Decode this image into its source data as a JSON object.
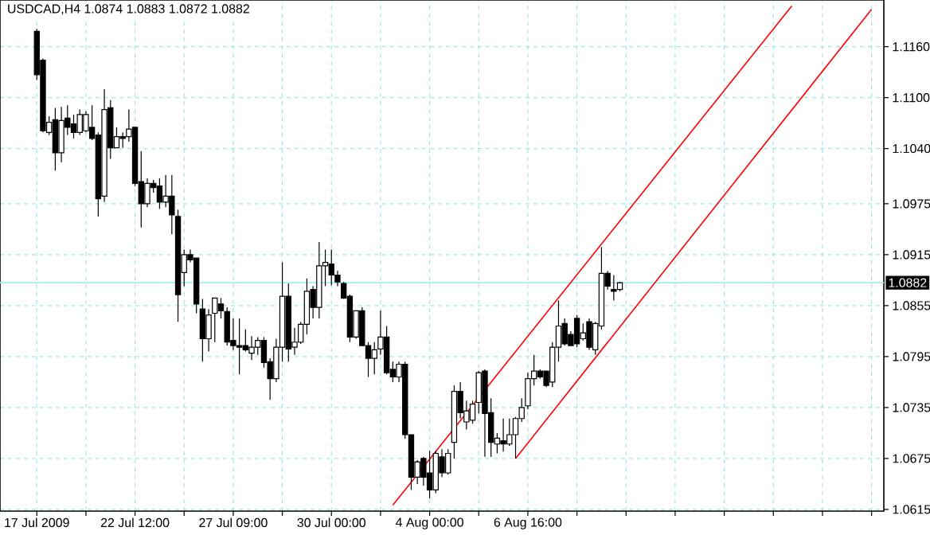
{
  "chart_data": {
    "type": "candlestick",
    "title": "USDCAD,H4 1.0874 1.0883 1.0872 1.0882",
    "categories": [
      "17 Jul 2009",
      null,
      null,
      null,
      null,
      null,
      null,
      null,
      null,
      null,
      null,
      null,
      null,
      null,
      null,
      null,
      "22 Jul 12:00",
      null,
      null,
      null,
      null,
      null,
      null,
      null,
      null,
      null,
      null,
      null,
      null,
      null,
      null,
      null,
      "27 Jul 09:00",
      null,
      null,
      null,
      null,
      null,
      null,
      null,
      null,
      null,
      null,
      null,
      null,
      null,
      null,
      null,
      "30 Jul 00:00",
      null,
      null,
      null,
      null,
      null,
      null,
      null,
      null,
      null,
      null,
      null,
      null,
      null,
      null,
      null,
      "4 Aug 00:00",
      null,
      null,
      null,
      null,
      null,
      null,
      null,
      null,
      null,
      null,
      null,
      null,
      null,
      null,
      null,
      "6 Aug 16:00",
      null,
      null,
      null,
      null,
      null,
      null,
      null,
      null,
      null,
      null,
      null,
      null,
      null,
      null,
      null,
      null,
      null,
      null,
      null,
      null,
      null,
      null,
      null,
      null,
      null,
      null,
      null,
      null,
      null,
      null,
      null,
      null,
      null,
      null,
      null,
      null,
      null,
      null,
      null,
      null,
      null,
      null,
      null,
      null,
      null,
      null,
      null,
      null,
      null,
      null,
      null,
      null,
      null,
      null,
      null,
      null,
      null,
      null
    ],
    "ohlc": [
      [
        1.1178,
        1.1181,
        1.1121,
        1.1127
      ],
      [
        1.1144,
        1.1146,
        1.1059,
        1.1061
      ],
      [
        1.1059,
        1.1078,
        1.1056,
        1.1071
      ],
      [
        1.1074,
        1.1088,
        1.1014,
        1.1035
      ],
      [
        1.1035,
        1.1089,
        1.1024,
        1.1073
      ],
      [
        1.1076,
        1.1091,
        1.1056,
        1.1065
      ],
      [
        1.1069,
        1.108,
        1.1052,
        1.1059
      ],
      [
        1.1059,
        1.1086,
        1.1056,
        1.108
      ],
      [
        1.1061,
        1.1084,
        1.1059,
        1.108
      ],
      [
        1.1065,
        1.1091,
        1.105,
        1.1052
      ],
      [
        1.1056,
        1.1059,
        1.096,
        1.0981
      ],
      [
        1.0984,
        1.111,
        1.0977,
        1.1086
      ],
      [
        1.1088,
        1.1097,
        1.1028,
        1.1041
      ],
      [
        1.1041,
        1.1065,
        1.1041,
        1.1054
      ],
      [
        1.1054,
        1.1059,
        1.1041,
        1.1052
      ],
      [
        1.1054,
        1.1086,
        1.1048,
        1.1063
      ],
      [
        1.1065,
        1.1065,
        1.0996,
        1.0999
      ],
      [
        1.1001,
        1.1037,
        1.0947,
        1.0975
      ],
      [
        1.0975,
        1.1005,
        1.0971,
        1.0999
      ],
      [
        1.0999,
        1.1003,
        1.0988,
        1.0994
      ],
      [
        1.0996,
        1.1005,
        1.0969,
        1.0977
      ],
      [
        1.0977,
        1.1009,
        1.0971,
        1.0984
      ],
      [
        1.0984,
        1.1009,
        1.0939,
        1.0962
      ],
      [
        1.096,
        1.0968,
        1.0836,
        1.0868
      ],
      [
        1.0894,
        1.0921,
        1.0878,
        1.0915
      ],
      [
        1.0915,
        1.0921,
        1.0906,
        1.0909
      ],
      [
        1.0911,
        1.0911,
        1.0846,
        1.0857
      ],
      [
        1.0851,
        1.0863,
        1.0789,
        1.0816
      ],
      [
        1.0816,
        1.0851,
        1.0801,
        1.0844
      ],
      [
        1.0846,
        1.0864,
        1.0812,
        1.0864
      ],
      [
        1.0857,
        1.0864,
        1.084,
        1.0849
      ],
      [
        1.0848,
        1.0853,
        1.0808,
        1.0812
      ],
      [
        1.0814,
        1.084,
        1.0803,
        1.0808
      ],
      [
        1.0808,
        1.084,
        1.0774,
        1.0806
      ],
      [
        1.0808,
        1.0827,
        1.0801,
        1.0803
      ],
      [
        1.0799,
        1.0819,
        1.0791,
        1.0806
      ],
      [
        1.0806,
        1.0818,
        1.0797,
        1.0814
      ],
      [
        1.0814,
        1.0818,
        1.0782,
        1.0788
      ],
      [
        1.0789,
        1.0793,
        1.0744,
        1.0769
      ],
      [
        1.0769,
        1.0816,
        1.0765,
        1.0806
      ],
      [
        1.0806,
        1.0906,
        1.0789,
        1.0866
      ],
      [
        1.0866,
        1.0881,
        1.0789,
        1.0804
      ],
      [
        1.0806,
        1.0829,
        1.0797,
        1.0812
      ],
      [
        1.0812,
        1.0836,
        1.081,
        1.0833
      ],
      [
        1.0833,
        1.0887,
        1.0821,
        1.0872
      ],
      [
        1.0874,
        1.0878,
        1.084,
        1.0853
      ],
      [
        1.0853,
        1.093,
        1.084,
        1.0902
      ],
      [
        1.0902,
        1.0921,
        1.0878,
        1.0906
      ],
      [
        1.0904,
        1.0921,
        1.0879,
        1.0891
      ],
      [
        1.0891,
        1.0896,
        1.0878,
        1.0883
      ],
      [
        1.0881,
        1.0883,
        1.0863,
        1.0864
      ],
      [
        1.0866,
        1.0868,
        1.0812,
        1.0818
      ],
      [
        1.0818,
        1.0849,
        1.0816,
        1.0849
      ],
      [
        1.0849,
        1.0853,
        1.0808,
        1.0808
      ],
      [
        1.0808,
        1.0812,
        1.0771,
        1.0793
      ],
      [
        1.0793,
        1.0812,
        1.0774,
        1.0803
      ],
      [
        1.0804,
        1.0849,
        1.0797,
        1.0818
      ],
      [
        1.0818,
        1.0831,
        1.0774,
        1.0776
      ],
      [
        1.078,
        1.0789,
        1.0765,
        1.0771
      ],
      [
        1.0771,
        1.0789,
        1.0765,
        1.0786
      ],
      [
        1.0786,
        1.0789,
        1.0698,
        1.0703
      ],
      [
        1.0703,
        1.0703,
        1.0638,
        1.0653
      ],
      [
        1.0653,
        1.0673,
        1.0645,
        1.0671
      ],
      [
        1.0675,
        1.0677,
        1.0643,
        1.0653
      ],
      [
        1.0658,
        1.0684,
        1.0628,
        1.0638
      ],
      [
        1.0638,
        1.0684,
        1.0634,
        1.0681
      ],
      [
        1.0677,
        1.0686,
        1.0653,
        1.0658
      ],
      [
        1.0658,
        1.0686,
        1.0656,
        1.0681
      ],
      [
        1.0694,
        1.0761,
        1.0675,
        1.0754
      ],
      [
        1.0754,
        1.0765,
        1.0722,
        1.0729
      ],
      [
        1.0718,
        1.0743,
        1.0709,
        1.0731
      ],
      [
        1.072,
        1.0743,
        1.0716,
        1.0739
      ],
      [
        1.0741,
        1.0778,
        1.0728,
        1.0776
      ],
      [
        1.0778,
        1.078,
        1.0677,
        1.0728
      ],
      [
        1.0729,
        1.0746,
        1.0677,
        1.0694
      ],
      [
        1.0692,
        1.0705,
        1.0681,
        1.0699
      ],
      [
        1.0696,
        1.0722,
        1.0683,
        1.0692
      ],
      [
        1.0692,
        1.0722,
        1.069,
        1.0703
      ],
      [
        1.0703,
        1.0724,
        1.0675,
        1.0722
      ],
      [
        1.0722,
        1.0746,
        1.0718,
        1.0735
      ],
      [
        1.0737,
        1.0776,
        1.0733,
        1.0769
      ],
      [
        1.0769,
        1.0797,
        1.0761,
        1.0778
      ],
      [
        1.0778,
        1.078,
        1.0769,
        1.0771
      ],
      [
        1.0778,
        1.0778,
        1.0759,
        1.0761
      ],
      [
        1.0765,
        1.0812,
        1.0759,
        1.0806
      ],
      [
        1.0806,
        1.0861,
        1.0789,
        1.0831
      ],
      [
        1.0834,
        1.084,
        1.0808,
        1.081
      ],
      [
        1.0821,
        1.0825,
        1.0808,
        1.0808
      ],
      [
        1.084,
        1.0844,
        1.0806,
        1.081
      ],
      [
        1.0816,
        1.0834,
        1.0814,
        1.0823
      ],
      [
        1.0836,
        1.084,
        1.0803,
        1.0806
      ],
      [
        1.0803,
        1.0836,
        1.0797,
        1.0834
      ],
      [
        1.0831,
        1.0924,
        1.0827,
        1.0893
      ],
      [
        1.0893,
        1.0896,
        1.0874,
        1.0878
      ],
      [
        1.0874,
        1.0891,
        1.0861,
        1.0872
      ],
      [
        1.0874,
        1.0883,
        1.0872,
        1.0882
      ],
      null,
      null,
      null,
      null,
      null,
      null,
      null,
      null,
      null,
      null,
      null,
      null,
      null,
      null,
      null,
      null,
      null,
      null,
      null,
      null,
      null,
      null,
      null,
      null,
      null,
      null,
      null,
      null,
      null,
      null,
      null,
      null,
      null,
      null,
      null,
      null,
      null,
      null,
      null,
      null,
      null,
      null,
      null
    ],
    "series": [
      {
        "type": "line",
        "color": "#ff0000",
        "values": [
          null,
          null,
          null,
          null,
          null,
          null,
          null,
          null,
          null,
          null,
          null,
          null,
          null,
          null,
          null,
          null,
          null,
          null,
          null,
          null,
          null,
          null,
          null,
          null,
          null,
          null,
          null,
          null,
          null,
          null,
          null,
          null,
          null,
          null,
          null,
          null,
          null,
          null,
          null,
          null,
          null,
          null,
          null,
          null,
          null,
          null,
          null,
          null,
          null,
          null,
          null,
          null,
          null,
          null,
          null,
          null,
          null,
          null,
          1.062,
          null,
          null,
          null,
          null,
          null,
          null,
          null,
          null,
          null,
          null,
          null,
          null,
          null,
          null,
          null,
          null,
          null,
          null,
          null,
          null,
          null,
          null,
          null,
          null,
          null,
          null,
          null,
          null,
          null,
          null,
          null,
          null,
          null,
          null,
          null,
          null,
          null,
          null,
          null,
          null,
          null,
          null,
          null,
          null,
          null,
          null,
          null,
          null,
          null,
          null,
          null,
          null,
          null,
          null,
          null,
          null,
          null,
          null,
          null,
          null,
          null,
          null,
          null,
          null,
          1.1208,
          null,
          null,
          null,
          null,
          null,
          null,
          null,
          null,
          null,
          null,
          null,
          null,
          null,
          null,
          null
        ]
      },
      {
        "type": "line",
        "color": "#ff0000",
        "values": [
          null,
          null,
          null,
          null,
          null,
          null,
          null,
          null,
          null,
          null,
          null,
          null,
          null,
          null,
          null,
          null,
          null,
          null,
          null,
          null,
          null,
          null,
          null,
          null,
          null,
          null,
          null,
          null,
          null,
          null,
          null,
          null,
          null,
          null,
          null,
          null,
          null,
          null,
          null,
          null,
          null,
          null,
          null,
          null,
          null,
          null,
          null,
          null,
          null,
          null,
          null,
          null,
          null,
          null,
          null,
          null,
          null,
          null,
          null,
          null,
          null,
          null,
          null,
          null,
          null,
          null,
          null,
          null,
          null,
          null,
          null,
          null,
          null,
          null,
          null,
          null,
          null,
          null,
          1.0675,
          null,
          null,
          null,
          null,
          null,
          null,
          null,
          null,
          null,
          null,
          null,
          null,
          null,
          null,
          null,
          null,
          null,
          null,
          null,
          null,
          null,
          null,
          null,
          null,
          null,
          null,
          null,
          null,
          null,
          null,
          null,
          null,
          null,
          null,
          null,
          null,
          null,
          null,
          null,
          null,
          null,
          null,
          null,
          null,
          null,
          null,
          null,
          null,
          null,
          null,
          null,
          null,
          null,
          null,
          null,
          null,
          null,
          1.1204,
          null,
          null
        ]
      }
    ],
    "ylim": [
      1.0613,
      1.1215
    ],
    "yticks": [
      1.0615,
      1.0675,
      1.0735,
      1.0795,
      1.0855,
      1.0915,
      1.0975,
      {
        "value": 1.104,
        "label": "1.1040"
      },
      {
        "value": 1.11,
        "label": "1.1100"
      },
      {
        "value": 1.116,
        "label": "1.1160"
      }
    ],
    "grid": true,
    "ref_lines": [
      {
        "axis": "y",
        "value": 1.0882,
        "label": "1.0882",
        "color": "#a0f0f0"
      }
    ]
  }
}
